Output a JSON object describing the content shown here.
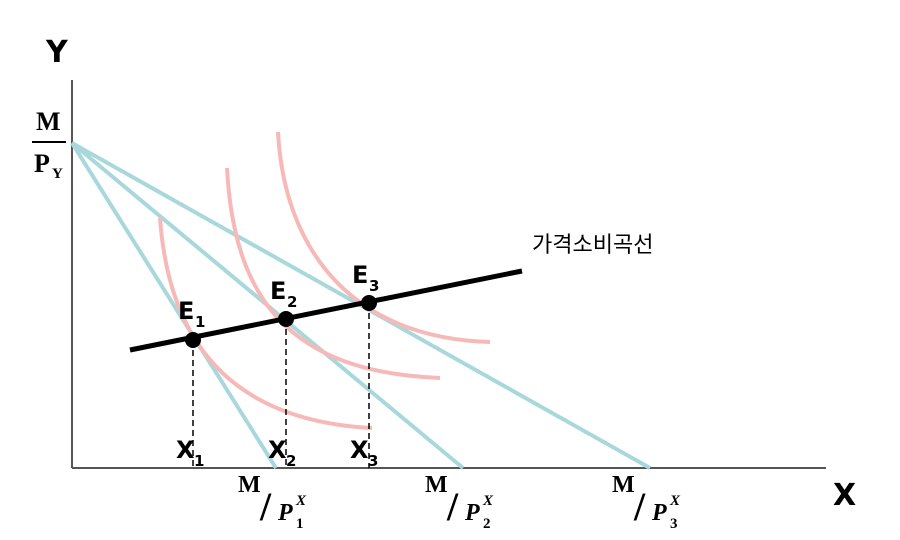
{
  "axes": {
    "y_label": "Y",
    "x_label": "X"
  },
  "intercept_y": {
    "numerator": "M",
    "denominator": "P",
    "denominator_sub": "Y"
  },
  "curve_label": "가격소비곡선",
  "equilibria": [
    {
      "letter": "E",
      "sub": "1"
    },
    {
      "letter": "E",
      "sub": "2"
    },
    {
      "letter": "E",
      "sub": "3"
    }
  ],
  "quantities": [
    {
      "letter": "X",
      "sub": "1"
    },
    {
      "letter": "X",
      "sub": "2"
    },
    {
      "letter": "X",
      "sub": "3"
    }
  ],
  "x_intercepts": [
    {
      "numerator": "M",
      "slash": "/",
      "denominator": "P",
      "sup": "X",
      "sub": "1"
    },
    {
      "numerator": "M",
      "slash": "/",
      "denominator": "P",
      "sup": "X",
      "sub": "2"
    },
    {
      "numerator": "M",
      "slash": "/",
      "denominator": "P",
      "sup": "X",
      "sub": "3"
    }
  ],
  "colors": {
    "budget_line": "#a8d8dc",
    "indifference_curve": "#f7b8b8",
    "pcc_line": "#000000",
    "axis": "#555555"
  }
}
